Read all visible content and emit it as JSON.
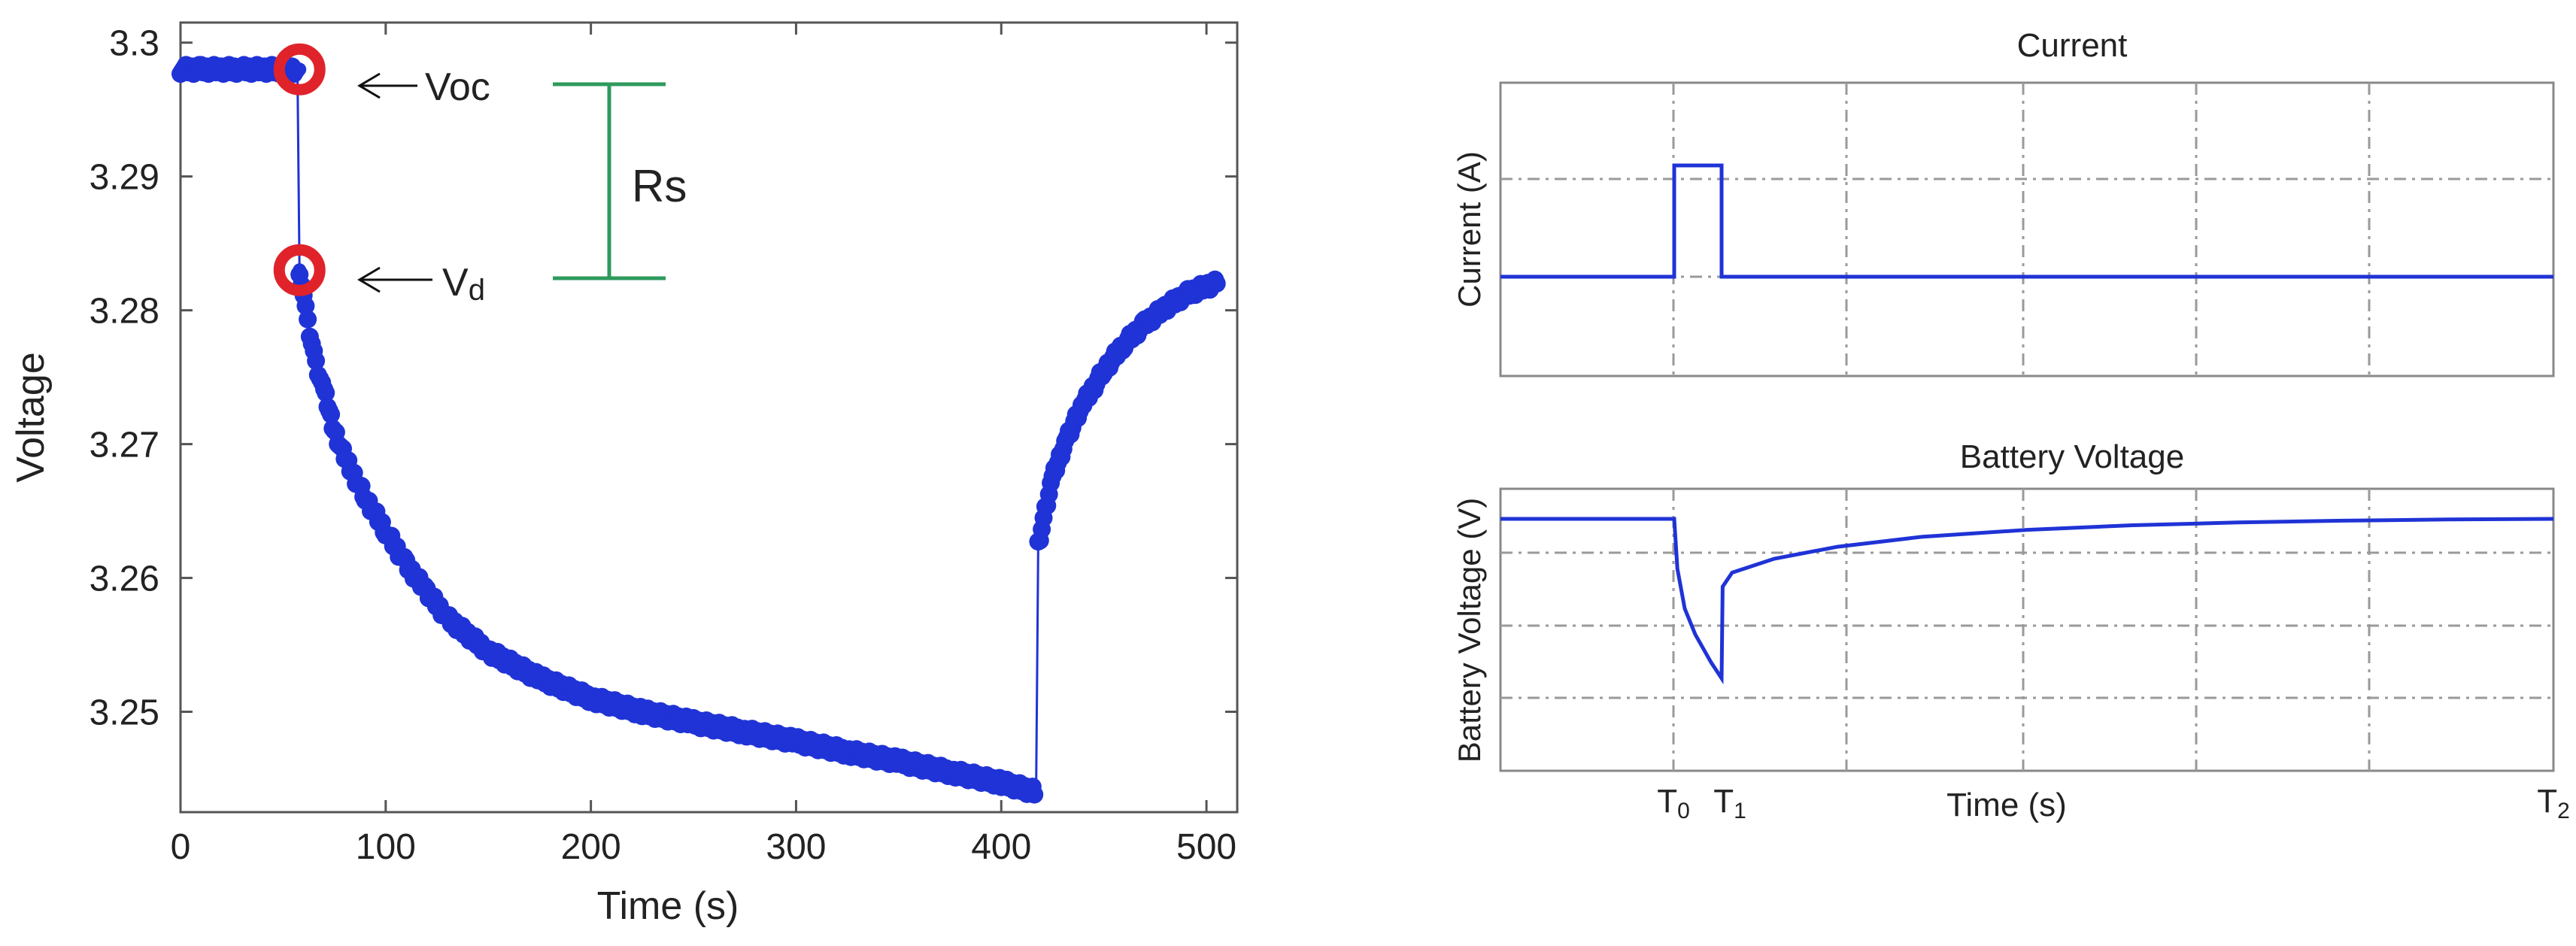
{
  "colors": {
    "series": "#1f33d6",
    "marker_ring": "#e0232a",
    "bracket": "#2e9a5c",
    "grid": "#9a9a9a",
    "axis": "#555555"
  },
  "chart_data": [
    {
      "type": "scatter",
      "title": "",
      "xlabel": "Time (s)",
      "ylabel": "Voltage",
      "xlim": [
        0,
        515
      ],
      "ylim": [
        3.2425,
        3.3015
      ],
      "xticks": [
        0,
        100,
        200,
        300,
        400,
        500
      ],
      "xtick_labels": [
        "0",
        "100",
        "200",
        "300",
        "400",
        "500"
      ],
      "yticks": [
        3.25,
        3.26,
        3.27,
        3.28,
        3.29,
        3.3
      ],
      "ytick_labels": [
        "3.25",
        "3.26",
        "3.27",
        "3.28",
        "3.29",
        "3.3"
      ],
      "grid": false,
      "series": [
        {
          "name": "",
          "x": [
            0,
            10,
            20,
            30,
            40,
            50,
            57,
            58,
            62,
            66,
            70,
            75,
            80,
            90,
            100,
            110,
            120,
            130,
            150,
            175,
            200,
            225,
            250,
            275,
            300,
            325,
            350,
            375,
            400,
            417,
            418,
            425,
            432,
            440,
            450,
            460,
            470,
            480,
            490,
            500,
            505
          ],
          "y": [
            3.298,
            3.298,
            3.298,
            3.298,
            3.298,
            3.298,
            3.298,
            3.283,
            3.279,
            3.276,
            3.274,
            3.271,
            3.269,
            3.266,
            3.2635,
            3.261,
            3.259,
            3.257,
            3.2545,
            3.2525,
            3.251,
            3.25,
            3.2492,
            3.2485,
            3.2478,
            3.247,
            3.2463,
            3.2455,
            3.2447,
            3.244,
            3.2625,
            3.2675,
            3.2705,
            3.273,
            3.2755,
            3.2775,
            3.279,
            3.2802,
            3.2812,
            3.2818,
            3.282
          ]
        }
      ],
      "highlighted_points": [
        {
          "label": "Voc",
          "x": 58,
          "y": 3.298
        },
        {
          "label": "Vd",
          "x": 58,
          "y": 3.283
        }
      ],
      "annotations": {
        "voc": "Voc",
        "vd_main": "V",
        "vd_sub": "d",
        "bracket_label": "Rs"
      }
    },
    {
      "type": "line",
      "title": "Current",
      "xlabel": "",
      "ylabel": "Current (A)",
      "grid": true,
      "normalized_signal": {
        "x": [
          0,
          0.165,
          0.165,
          0.21,
          0.21,
          1
        ],
        "y": [
          0,
          0,
          1,
          1,
          0,
          0
        ]
      }
    },
    {
      "type": "line",
      "title": "Battery Voltage",
      "xlabel": "Time (s)",
      "ylabel": "Battery Voltage (V)",
      "grid": true,
      "xtick_labels": [
        {
          "main": "T",
          "sub": "0"
        },
        {
          "main": "T",
          "sub": "1"
        },
        {
          "main": "T",
          "sub": "2"
        }
      ],
      "normalized_signal": {
        "x": [
          0,
          0.165,
          0.168,
          0.175,
          0.185,
          0.2,
          0.21,
          0.211,
          0.22,
          0.26,
          0.32,
          0.4,
          0.5,
          0.6,
          0.7,
          0.8,
          0.9,
          1
        ],
        "y": [
          0,
          0,
          -0.25,
          -0.45,
          -0.58,
          -0.72,
          -0.8,
          -0.34,
          -0.27,
          -0.2,
          -0.14,
          -0.09,
          -0.055,
          -0.032,
          -0.018,
          -0.009,
          -0.003,
          0
        ]
      }
    }
  ]
}
